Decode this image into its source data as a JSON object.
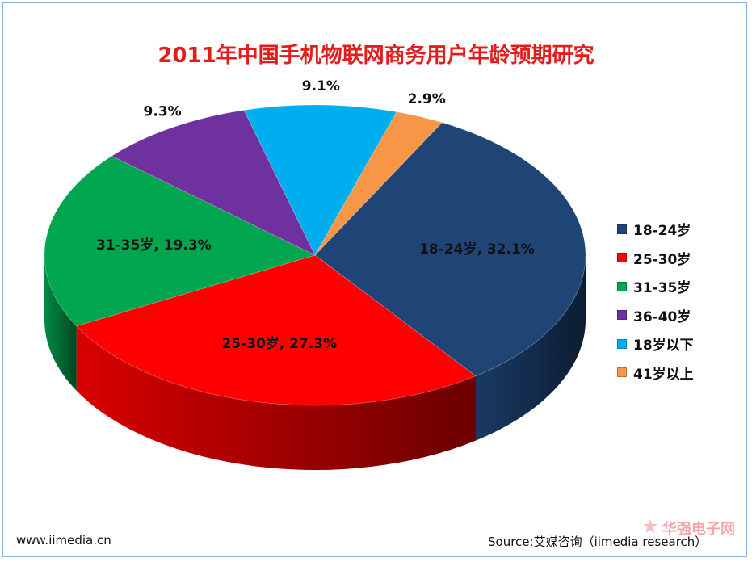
{
  "chart_data": {
    "type": "pie",
    "title": "2011年中国手机物联网商务用户年龄预期研究",
    "slices": [
      {
        "label": "18-24岁",
        "value": 32.1,
        "color": "#1f4476",
        "data_label": "18-24岁, 32.1%"
      },
      {
        "label": "25-30岁",
        "value": 27.3,
        "color": "#fe0000",
        "data_label": "25-30岁, 27.3%"
      },
      {
        "label": "31-35岁",
        "value": 19.3,
        "color": "#00a54f",
        "data_label": "31-35岁, 19.3%"
      },
      {
        "label": "36-40岁",
        "value": 9.3,
        "color": "#7031a0",
        "data_label": "9.3%"
      },
      {
        "label": "18岁以下",
        "value": 9.1,
        "color": "#00aeef",
        "data_label": "9.1%"
      },
      {
        "label": "41岁以上",
        "value": 2.9,
        "color": "#f79646",
        "data_label": "2.9%"
      }
    ],
    "legend_position": "right"
  },
  "footer": {
    "website": "www.iimedia.cn",
    "source": "Source:艾媒咨询（iimedia research）"
  },
  "watermark": {
    "text": "华强电子网"
  }
}
